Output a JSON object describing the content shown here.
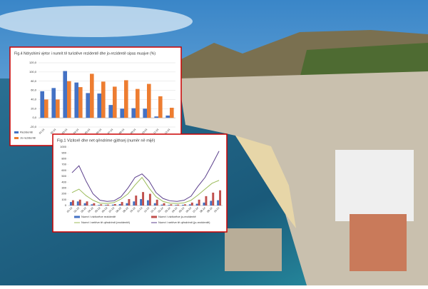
{
  "chart_data": [
    {
      "type": "bar",
      "title": "Fig.4 Ndryshimi vjetor i numrit të turistëve rezidentë dhe jo-rezidentë sipas muajve (%)",
      "categories": [
        "01-24",
        "02-24",
        "03-24",
        "04-24",
        "05-24",
        "06-24",
        "07-24",
        "08-24",
        "09-24",
        "10-24",
        "11-24",
        "12-24"
      ],
      "series": [
        {
          "name": "Rezidentë",
          "color": "#4472c4",
          "values": [
            58,
            65,
            102,
            77,
            54,
            53,
            28,
            20,
            21,
            20,
            3,
            5
          ]
        },
        {
          "name": "Jo-rezidentë",
          "color": "#ed7d31",
          "values": [
            40,
            40,
            80,
            67,
            96,
            79,
            68,
            82,
            63,
            74,
            47,
            22
          ]
        }
      ],
      "ylim": [
        -20,
        120
      ],
      "yticks": [
        {
          "value": -20,
          "label": "-20,0"
        },
        {
          "value": 0,
          "label": "0,0"
        },
        {
          "value": 20,
          "label": "20,0"
        },
        {
          "value": 40,
          "label": "40,0"
        },
        {
          "value": 60,
          "label": "60,0"
        },
        {
          "value": 80,
          "label": "80,0"
        },
        {
          "value": 100,
          "label": "100,0"
        },
        {
          "value": 120,
          "label": "120,0"
        }
      ],
      "grid": true
    },
    {
      "type": "combo",
      "title": "Fig.1 Vizitorë dhe net qëndrime gjithsej (numër në mijë)",
      "categories": [
        "01-23",
        "02-23",
        "03-23",
        "04-23",
        "05-23",
        "06-23",
        "07-23",
        "08-23",
        "09-23",
        "10-23",
        "11-23",
        "12-23",
        "01-24",
        "02-24",
        "03-24",
        "04-24",
        "05-24",
        "06-24",
        "07-24",
        "08-24",
        "09-24",
        "10-24"
      ],
      "series": [
        {
          "name": "Numri i vizitorëve rezidentë",
          "kind": "bar",
          "color": "#4472c4",
          "values": [
            60,
            70,
            40,
            20,
            10,
            10,
            15,
            25,
            40,
            70,
            110,
            90,
            40,
            15,
            10,
            10,
            12,
            20,
            30,
            50,
            80,
            90
          ]
        },
        {
          "name": "Numri i vizitorëve jo-rezidentë",
          "kind": "bar",
          "color": "#c0504d",
          "values": [
            90,
            100,
            70,
            40,
            20,
            15,
            25,
            60,
            110,
            170,
            230,
            200,
            100,
            40,
            20,
            15,
            20,
            50,
            100,
            160,
            220,
            260
          ]
        },
        {
          "name": "Numri i netëve të qëndrimit (rezidentë)",
          "kind": "line",
          "color": "#9bbb59",
          "values": [
            220,
            280,
            170,
            90,
            40,
            35,
            50,
            110,
            200,
            350,
            480,
            300,
            150,
            70,
            40,
            35,
            45,
            90,
            180,
            280,
            380,
            430
          ]
        },
        {
          "name": "Numri i netëve të qëndrimit (jo-rezidentë)",
          "kind": "line",
          "color": "#5b3f8c",
          "values": [
            560,
            680,
            420,
            200,
            90,
            70,
            80,
            150,
            300,
            480,
            540,
            420,
            220,
            120,
            80,
            70,
            90,
            160,
            330,
            480,
            700,
            930
          ]
        }
      ],
      "ylim": [
        0,
        1000
      ],
      "yticks": [
        0,
        100,
        200,
        300,
        400,
        500,
        600,
        700,
        800,
        900,
        1000
      ],
      "grid": false
    }
  ]
}
